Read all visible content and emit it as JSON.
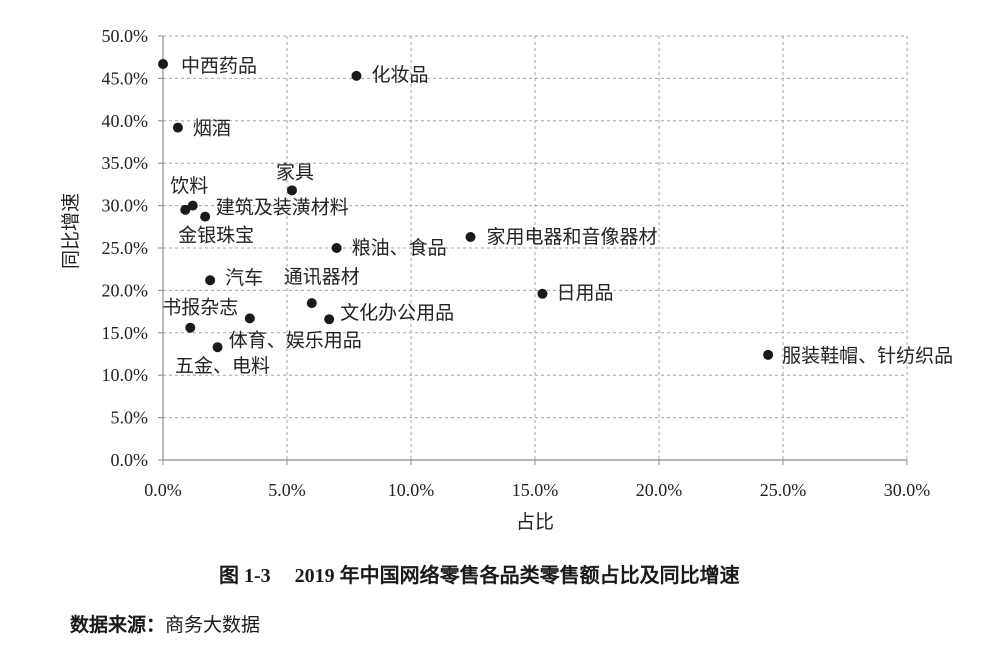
{
  "figure": {
    "number": "图 1-3",
    "source_label": "数据来源：",
    "source_text": "商务大数据"
  },
  "colors": {
    "point": "#1a1a1a",
    "grid": "#a6a6a6",
    "axis": "#8c8c8c"
  },
  "chart_data": {
    "type": "scatter",
    "title": "2019 年中国网络零售各品类零售额占比及同比增速",
    "xlabel": "占比",
    "ylabel": "同比增速",
    "xlim": [
      0,
      30
    ],
    "ylim": [
      0,
      50
    ],
    "xticks": [
      0,
      5,
      10,
      15,
      20,
      25,
      30
    ],
    "yticks": [
      0,
      5,
      10,
      15,
      20,
      25,
      30,
      35,
      40,
      45,
      50
    ],
    "xtick_labels": [
      "0.0%",
      "5.0%",
      "10.0%",
      "15.0%",
      "20.0%",
      "25.0%",
      "30.0%"
    ],
    "ytick_labels": [
      "0.0%",
      "5.0%",
      "10.0%",
      "15.0%",
      "20.0%",
      "25.0%",
      "30.0%",
      "35.0%",
      "40.0%",
      "45.0%",
      "50.0%"
    ],
    "grid": true,
    "points": [
      {
        "label": "中西药品",
        "x": 0.0,
        "y": 46.7
      },
      {
        "label": "化妆品",
        "x": 7.8,
        "y": 45.3
      },
      {
        "label": "烟酒",
        "x": 0.6,
        "y": 39.2
      },
      {
        "label": "家具",
        "x": 5.2,
        "y": 31.8
      },
      {
        "label": "饮料",
        "x": 0.9,
        "y": 29.5
      },
      {
        "label": "建筑及装潢材料",
        "x": 1.2,
        "y": 30.0
      },
      {
        "label": "金银珠宝",
        "x": 1.7,
        "y": 28.7
      },
      {
        "label": "粮油、食品",
        "x": 7.0,
        "y": 25.0
      },
      {
        "label": "家用电器和音像器材",
        "x": 12.4,
        "y": 26.3
      },
      {
        "label": "汽车",
        "x": 1.9,
        "y": 21.2
      },
      {
        "label": "通讯器材",
        "x": 6.0,
        "y": 18.5
      },
      {
        "label": "日用品",
        "x": 15.3,
        "y": 19.6
      },
      {
        "label": "书报杂志",
        "x": 1.1,
        "y": 15.6
      },
      {
        "label": "文化办公用品",
        "x": 6.7,
        "y": 16.6
      },
      {
        "label": "体育、娱乐用品",
        "x": 3.5,
        "y": 16.7
      },
      {
        "label": "五金、电料",
        "x": 2.2,
        "y": 13.3
      },
      {
        "label": "服装鞋帽、针纺织品",
        "x": 24.4,
        "y": 12.4
      }
    ]
  }
}
